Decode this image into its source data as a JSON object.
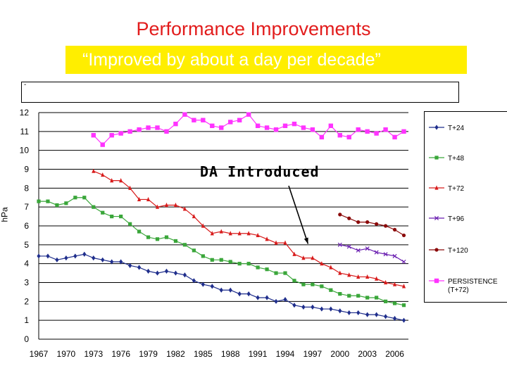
{
  "header": {
    "title": "Performance Improvements",
    "subtitle": "“Improved by about a day per decade”",
    "box_mark": "-"
  },
  "colors": {
    "title": "#e21c1c",
    "highlight": "#ffee00",
    "t24": "#1f2e8c",
    "t48": "#3aa63a",
    "t72": "#d81c1c",
    "t96": "#6a1fb0",
    "t120": "#8b0a0a",
    "persistence": "#ff33ff"
  },
  "chart_data": {
    "type": "line",
    "ylabel": "hPa",
    "ylim": [
      0,
      12
    ],
    "yticks": [
      "0",
      "1",
      "2",
      "3",
      "4",
      "5",
      "6",
      "7",
      "8",
      "9",
      "10",
      "11",
      "12"
    ],
    "xlim": [
      1967,
      2007.5
    ],
    "xticks": [
      "1967",
      "1970",
      "1973",
      "1976",
      "1979",
      "1982",
      "1985",
      "1988",
      "1991",
      "1994",
      "1997",
      "2000",
      "2003",
      "2006"
    ],
    "grid": "horizontal",
    "legend_position": "right",
    "annotation": {
      "text": "DA Introduced",
      "x": 1996.5,
      "y": 4.9
    },
    "series": [
      {
        "name": "T+24",
        "color": "#1f2e8c",
        "marker": "diamond",
        "x": [
          1967,
          1968,
          1969,
          1970,
          1971,
          1972,
          1973,
          1974,
          1975,
          1976,
          1977,
          1978,
          1979,
          1980,
          1981,
          1982,
          1983,
          1984,
          1985,
          1986,
          1987,
          1988,
          1989,
          1990,
          1991,
          1992,
          1993,
          1994,
          1995,
          1996,
          1997,
          1998,
          1999,
          2000,
          2001,
          2002,
          2003,
          2004,
          2005,
          2006,
          2007
        ],
        "values": [
          4.4,
          4.4,
          4.2,
          4.3,
          4.4,
          4.5,
          4.3,
          4.2,
          4.1,
          4.1,
          3.9,
          3.8,
          3.6,
          3.5,
          3.6,
          3.5,
          3.4,
          3.1,
          2.9,
          2.8,
          2.6,
          2.6,
          2.4,
          2.4,
          2.2,
          2.2,
          2.0,
          2.1,
          1.8,
          1.7,
          1.7,
          1.6,
          1.6,
          1.5,
          1.4,
          1.4,
          1.3,
          1.3,
          1.2,
          1.1,
          1.0
        ]
      },
      {
        "name": "T+48",
        "color": "#3aa63a",
        "marker": "square",
        "x": [
          1967,
          1968,
          1969,
          1970,
          1971,
          1972,
          1973,
          1974,
          1975,
          1976,
          1977,
          1978,
          1979,
          1980,
          1981,
          1982,
          1983,
          1984,
          1985,
          1986,
          1987,
          1988,
          1989,
          1990,
          1991,
          1992,
          1993,
          1994,
          1995,
          1996,
          1997,
          1998,
          1999,
          2000,
          2001,
          2002,
          2003,
          2004,
          2005,
          2006,
          2007
        ],
        "values": [
          7.3,
          7.3,
          7.1,
          7.2,
          7.5,
          7.5,
          7.0,
          6.7,
          6.5,
          6.5,
          6.1,
          5.7,
          5.4,
          5.3,
          5.4,
          5.2,
          5.0,
          4.7,
          4.4,
          4.2,
          4.2,
          4.1,
          4.0,
          4.0,
          3.8,
          3.7,
          3.5,
          3.5,
          3.1,
          2.9,
          2.9,
          2.8,
          2.6,
          2.4,
          2.3,
          2.3,
          2.2,
          2.2,
          2.0,
          1.9,
          1.8
        ]
      },
      {
        "name": "T+72",
        "color": "#d81c1c",
        "marker": "triangle",
        "x": [
          1973,
          1974,
          1975,
          1976,
          1977,
          1978,
          1979,
          1980,
          1981,
          1982,
          1983,
          1984,
          1985,
          1986,
          1987,
          1988,
          1989,
          1990,
          1991,
          1992,
          1993,
          1994,
          1995,
          1996,
          1997,
          1998,
          1999,
          2000,
          2001,
          2002,
          2003,
          2004,
          2005,
          2006,
          2007
        ],
        "values": [
          8.9,
          8.7,
          8.4,
          8.4,
          8.0,
          7.4,
          7.4,
          7.0,
          7.1,
          7.1,
          6.9,
          6.5,
          6.0,
          5.6,
          5.7,
          5.6,
          5.6,
          5.6,
          5.5,
          5.3,
          5.1,
          5.1,
          4.5,
          4.3,
          4.3,
          4.0,
          3.8,
          3.5,
          3.4,
          3.3,
          3.3,
          3.2,
          3.0,
          2.9,
          2.8
        ]
      },
      {
        "name": "T+96",
        "color": "#6a1fb0",
        "marker": "x",
        "x": [
          2000,
          2001,
          2002,
          2003,
          2004,
          2005,
          2006,
          2007
        ],
        "values": [
          5.0,
          4.9,
          4.7,
          4.8,
          4.6,
          4.5,
          4.4,
          4.1
        ]
      },
      {
        "name": "T+120",
        "color": "#8b0a0a",
        "marker": "dot",
        "x": [
          2000,
          2001,
          2002,
          2003,
          2004,
          2005,
          2006,
          2007
        ],
        "values": [
          6.6,
          6.4,
          6.2,
          6.2,
          6.1,
          6.0,
          5.8,
          5.5
        ]
      },
      {
        "name": "PERSISTENCE (T+72)",
        "color": "#ff33ff",
        "marker": "square",
        "x": [
          1973,
          1974,
          1975,
          1976,
          1977,
          1978,
          1979,
          1980,
          1981,
          1982,
          1983,
          1984,
          1985,
          1986,
          1987,
          1988,
          1989,
          1990,
          1991,
          1992,
          1993,
          1994,
          1995,
          1996,
          1997,
          1998,
          1999,
          2000,
          2001,
          2002,
          2003,
          2004,
          2005,
          2006,
          2007
        ],
        "values": [
          10.8,
          10.3,
          10.8,
          10.9,
          11.0,
          11.1,
          11.2,
          11.2,
          11.0,
          11.4,
          11.9,
          11.6,
          11.6,
          11.3,
          11.2,
          11.5,
          11.6,
          11.9,
          11.3,
          11.2,
          11.1,
          11.3,
          11.4,
          11.2,
          11.1,
          10.7,
          11.3,
          10.8,
          10.7,
          11.1,
          11.0,
          10.9,
          11.1,
          10.7,
          11.0
        ]
      }
    ]
  }
}
